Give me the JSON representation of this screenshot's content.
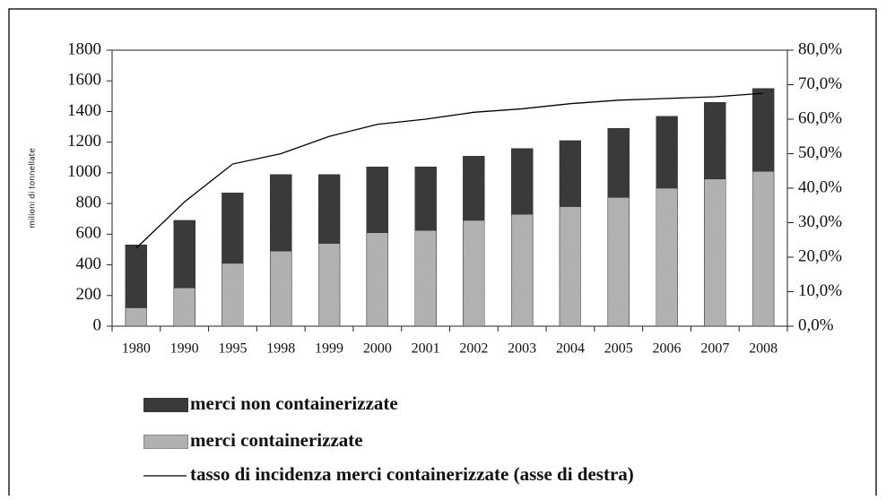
{
  "chart_data": {
    "type": "bar",
    "y_label": "milioni di tonnellate",
    "categories": [
      "1980",
      "1990",
      "1995",
      "1998",
      "1999",
      "2000",
      "2001",
      "2002",
      "2003",
      "2004",
      "2005",
      "2006",
      "2007",
      "2008"
    ],
    "series": [
      {
        "name": "merci containerizzate",
        "color": "#b8b8b8",
        "values": [
          120,
          250,
          410,
          490,
          540,
          610,
          625,
          690,
          730,
          780,
          840,
          900,
          960,
          1010
        ]
      },
      {
        "name": "merci non containerizzate",
        "color": "#3c3c3c",
        "values": [
          410,
          440,
          460,
          500,
          450,
          430,
          415,
          420,
          430,
          430,
          450,
          470,
          500,
          540
        ]
      },
      {
        "name": "tasso di incidenza merci containerizzate (asse di destra)",
        "color": "#000000",
        "axis": "y2",
        "type": "line",
        "values": [
          22.6,
          36,
          47,
          50,
          55,
          58.5,
          60,
          62,
          63,
          64.5,
          65.5,
          66,
          66.5,
          67.5
        ]
      }
    ],
    "stacked": true,
    "ylim": [
      0,
      1800
    ],
    "yticks": [
      0,
      200,
      400,
      600,
      800,
      1000,
      1200,
      1400,
      1600,
      1800
    ],
    "y2lim": [
      0,
      80
    ],
    "y2ticks": [
      {
        "value": 0,
        "label": "0,0%"
      },
      {
        "value": 10,
        "label": "10,0%"
      },
      {
        "value": 20,
        "label": "20,0%"
      },
      {
        "value": 30,
        "label": "30,0%"
      },
      {
        "value": 40,
        "label": "40,0%"
      },
      {
        "value": 50,
        "label": "50,0%"
      },
      {
        "value": 60,
        "label": "60,0%"
      },
      {
        "value": 70,
        "label": "70,0%"
      },
      {
        "value": 80,
        "label": "80,0%"
      }
    ],
    "legend": "bottom"
  }
}
